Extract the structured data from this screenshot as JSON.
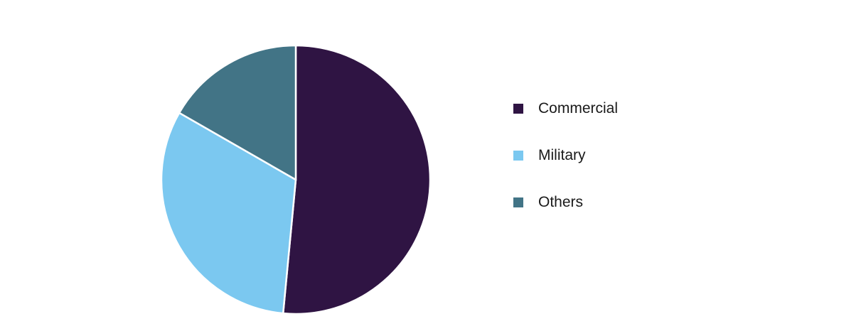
{
  "chart_data": {
    "type": "pie",
    "categories": [
      "Commercial",
      "Military",
      "Others"
    ],
    "values": [
      51.5,
      31.8,
      16.7
    ],
    "colors": [
      "#2f1443",
      "#7bc8f0",
      "#427486"
    ],
    "start_angle_deg": 0,
    "legend_position": "right",
    "title": ""
  }
}
